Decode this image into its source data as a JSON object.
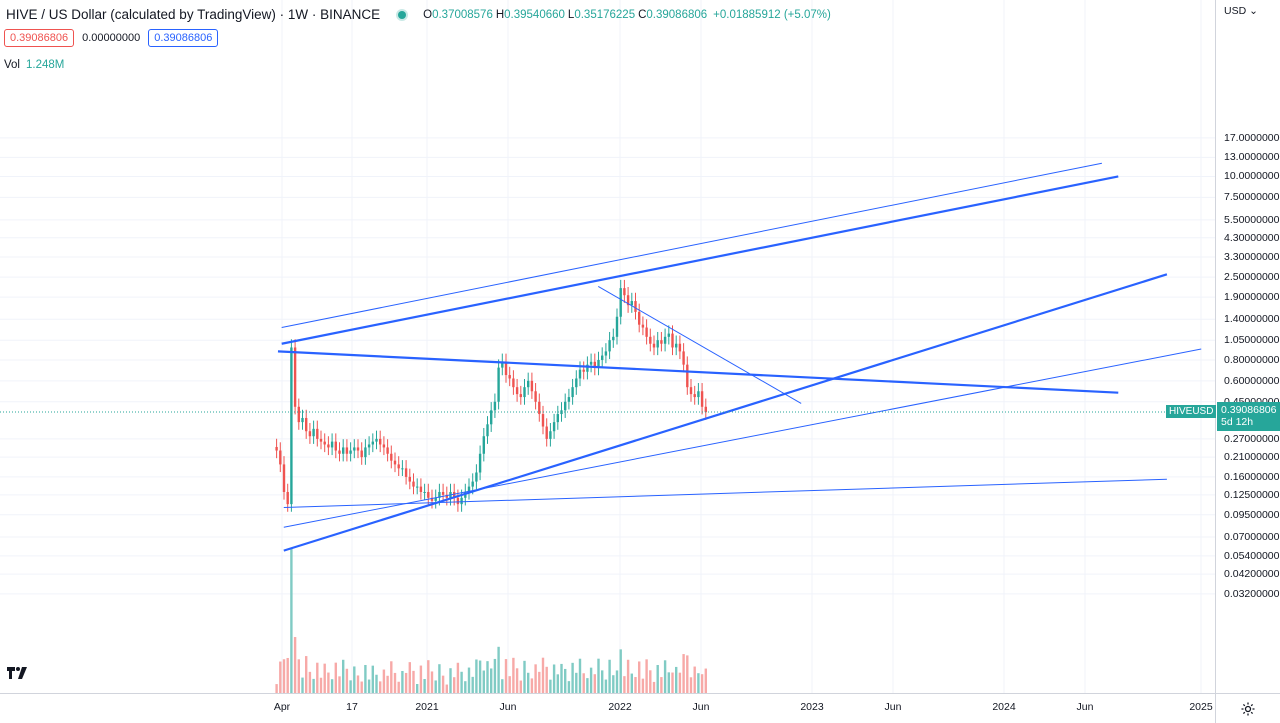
{
  "legend": {
    "symbol": "HIVE / US Dollar (calculated by TradingView) · 1W · BINANCE",
    "o_label": "O",
    "o": "0.37008576",
    "h_label": "H",
    "h": "0.39540660",
    "l_label": "L",
    "l": "0.35176225",
    "c_label": "C",
    "c": "0.39086806",
    "change": "+0.01885912 (+5.07%)",
    "status_color": "#26a69a"
  },
  "price_boxes": {
    "sell": "0.39086806",
    "spread": "0.00000000",
    "buy": "0.39086806"
  },
  "volume": {
    "label": "Vol",
    "value": "1.248M"
  },
  "price_axis": {
    "currency": "USD",
    "ticks": [
      "17.00000000",
      "13.00000000",
      "10.00000000",
      "7.50000000",
      "5.50000000",
      "4.30000000",
      "3.30000000",
      "2.50000000",
      "1.90000000",
      "1.40000000",
      "1.05000000",
      "0.80000000",
      "0.60000000",
      "0.45000000",
      "0.27000000",
      "0.21000000",
      "0.16000000",
      "0.12500000",
      "0.09500000",
      "0.07000000",
      "0.05400000",
      "0.04200000",
      "0.03200000"
    ]
  },
  "current": {
    "symbol": "HIVEUSD",
    "price": "0.39086806",
    "countdown": "5d 12h"
  },
  "time_axis": {
    "ticks": [
      "Apr",
      "17",
      "2021",
      "Jun",
      "2022",
      "Jun",
      "2023",
      "Jun",
      "2024",
      "Jun",
      "2025"
    ]
  },
  "colors": {
    "up": "#26a69a",
    "down": "#ef5350",
    "trendline": "#2962ff",
    "vol_up": "#80cbc4",
    "vol_down": "#f7a9a7"
  },
  "icons": {
    "logo": "tradingview-logo-icon",
    "settings": "gear-icon",
    "dropdown": "chevron-down-icon"
  },
  "chart_data": {
    "type": "candlestick",
    "scale": "log",
    "timeframe": "1W",
    "ylim": [
      0.028,
      19
    ],
    "x_ticks": [
      "Apr",
      "17",
      "2021",
      "Jun",
      "2022",
      "Jun",
      "2023",
      "Jun",
      "2024",
      "Jun",
      "2025"
    ],
    "y_ticks": [
      17,
      13,
      10,
      7.5,
      5.5,
      4.3,
      3.3,
      2.5,
      1.9,
      1.4,
      1.05,
      0.8,
      0.6,
      0.45,
      0.27,
      0.21,
      0.16,
      0.125,
      0.095,
      0.07,
      0.054,
      0.042,
      0.032
    ],
    "trend_lines": [
      {
        "from": [
          "2020-04-01",
          1.0
        ],
        "to": [
          "2024-08-01",
          10.0
        ]
      },
      {
        "from": [
          "2020-04-01",
          1.25
        ],
        "to": [
          "2024-07-01",
          12.0
        ]
      },
      {
        "from": [
          "2020-03-25",
          0.9
        ],
        "to": [
          "2024-08-01",
          0.51
        ]
      },
      {
        "from": [
          "2020-04-05",
          0.058
        ],
        "to": [
          "2024-11-01",
          2.6
        ]
      },
      {
        "from": [
          "2020-04-05",
          0.08
        ],
        "to": [
          "2025-01-05",
          0.93
        ]
      },
      {
        "from": [
          "2020-04-05",
          0.105
        ],
        "to": [
          "2024-11-01",
          0.155
        ]
      },
      {
        "from": [
          "2021-11-21",
          2.2
        ],
        "to": [
          "2022-12-10",
          0.44
        ]
      }
    ]
  }
}
